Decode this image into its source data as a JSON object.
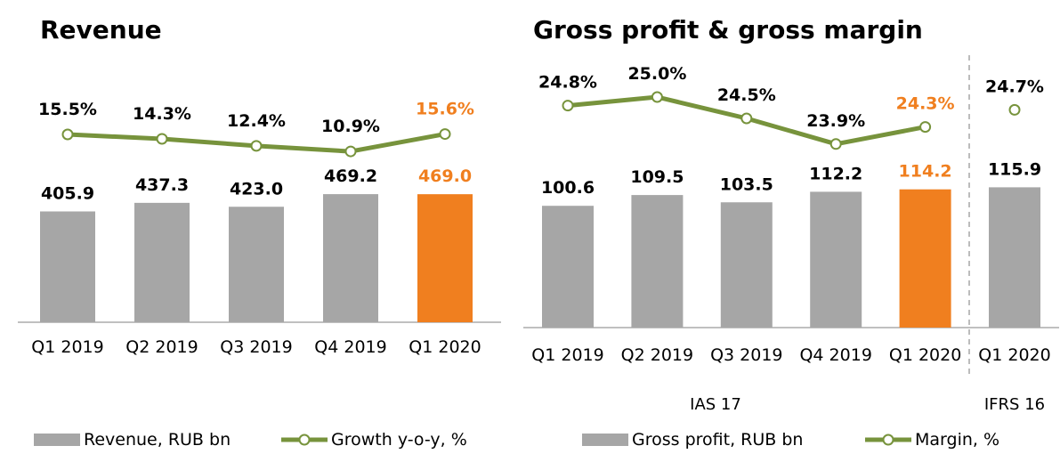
{
  "colors": {
    "bar": "#a6a6a6",
    "highlight": "#f07f1f",
    "line": "#77933c",
    "text": "#000000",
    "axis": "#808080",
    "divider": "#a6a6a6"
  },
  "chart_data": [
    {
      "type": "bar",
      "title": "Revenue",
      "categories": [
        "Q1 2019",
        "Q2 2019",
        "Q3 2019",
        "Q4 2019",
        "Q1 2020"
      ],
      "series": [
        {
          "name": "Revenue, RUB bn",
          "values": [
            405.9,
            437.3,
            423.0,
            469.2,
            469.0
          ],
          "labels": [
            "405.9",
            "437.3",
            "423.0",
            "469.2",
            "469.0"
          ]
        },
        {
          "name": "Growth y-o-y, %",
          "type": "line",
          "values": [
            15.5,
            14.3,
            12.4,
            10.9,
            15.6
          ],
          "labels": [
            "15.5%",
            "14.3%",
            "12.4%",
            "10.9%",
            "15.6%"
          ]
        }
      ],
      "highlight_index": 4,
      "legend_position": "bottom"
    },
    {
      "type": "bar",
      "title": "Gross profit & gross margin",
      "categories": [
        "Q1 2019",
        "Q2 2019",
        "Q3 2019",
        "Q4 2019",
        "Q1 2020",
        "Q1 2020"
      ],
      "series": [
        {
          "name": "Gross profit, RUB bn",
          "values": [
            100.6,
            109.5,
            103.5,
            112.2,
            114.2,
            115.9
          ],
          "labels": [
            "100.6",
            "109.5",
            "103.5",
            "112.2",
            "114.2",
            "115.9"
          ]
        },
        {
          "name": "Margin, %",
          "type": "line",
          "values": [
            24.8,
            25.0,
            24.5,
            23.9,
            24.3,
            24.7
          ],
          "labels": [
            "24.8%",
            "25.0%",
            "24.5%",
            "23.9%",
            "24.3%",
            "24.7%"
          ]
        }
      ],
      "highlight_index": 4,
      "groups": [
        {
          "label": "IAS 17",
          "indices": [
            0,
            1,
            2,
            3,
            4
          ]
        },
        {
          "label": "IFRS 16",
          "indices": [
            5
          ]
        }
      ],
      "legend_position": "bottom"
    }
  ]
}
